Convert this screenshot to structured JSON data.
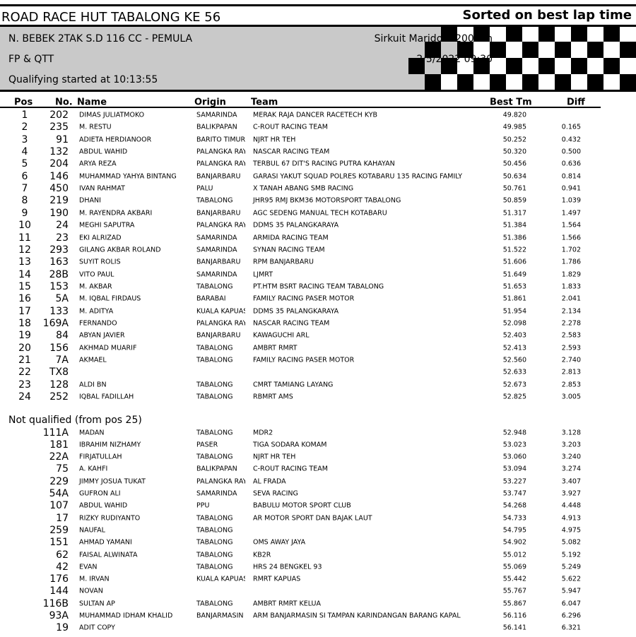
{
  "header": {
    "title": "ROAD RACE HUT TABALONG KE 56",
    "sort": "Sorted on best lap time",
    "class": "N. BEBEK 2TAK S.D 116 CC - PEMULA",
    "session": "FP & QTT",
    "started": "Qualifying started at 10:13:55",
    "circuit": "Sirkuit Marido 1.200 km",
    "date": "2/5/2022 09:30"
  },
  "table": {
    "columns": [
      "Pos",
      "No.",
      "Name",
      "Origin",
      "Team",
      "Best Tm",
      "Diff"
    ],
    "rows": [
      [
        1,
        "202",
        "DIMAS JULIATMOKO",
        "SAMARINDA",
        "MERAK RAJA DANCER RACETECH KYB",
        "49.820",
        null
      ],
      [
        2,
        "235",
        "M. RESTU",
        "BALIKPAPAN",
        "C-ROUT RACING TEAM",
        "49.985",
        "0.165"
      ],
      [
        3,
        "91",
        "ADIETA HERDIANOOR",
        "BARITO TIMUR",
        "NJRT HR TEH",
        "50.252",
        "0.432"
      ],
      [
        4,
        "132",
        "ABDUL WAHID",
        "PALANGKA RAYA",
        "NASCAR RACING TEAM",
        "50.320",
        "0.500"
      ],
      [
        5,
        "204",
        "ARYA REZA",
        "PALANGKA RAYA",
        "TERBUL 67 DIT'S RACING PUTRA KAHAYAN",
        "50.456",
        "0.636"
      ],
      [
        6,
        "146",
        "MUHAMMAD YAHYA BINTANG",
        "BANJARBARU",
        "GARASI YAKUT SQUAD POLRES KOTABARU 135 RACING FAMILY",
        "50.634",
        "0.814"
      ],
      [
        7,
        "450",
        "IVAN RAHMAT",
        "PALU",
        "X TANAH ABANG SMB RACING",
        "50.761",
        "0.941"
      ],
      [
        8,
        "219",
        "DHANI",
        "TABALONG",
        "JHR95 RMJ BKM36 MOTORSPORT TABALONG",
        "50.859",
        "1.039"
      ],
      [
        9,
        "190",
        "M. RAYENDRA AKBARI",
        "BANJARBARU",
        "AGC SEDENG MANUAL TECH KOTABARU",
        "51.317",
        "1.497"
      ],
      [
        10,
        "24",
        "MEGHI SAPUTRA",
        "PALANGKA RAYA",
        "DDMS 35 PALANGKARAYA",
        "51.384",
        "1.564"
      ],
      [
        11,
        "23",
        "EKI ALRIZAD",
        "SAMARINDA",
        "ARMIDA RACING TEAM",
        "51.386",
        "1.566"
      ],
      [
        12,
        "293",
        "GILANG AKBAR ROLAND",
        "SAMARINDA",
        "SYNAN RACING TEAM",
        "51.522",
        "1.702"
      ],
      [
        13,
        "163",
        "SUYIT ROLIS",
        "BANJARBARU",
        "RPM BANJARBARU",
        "51.606",
        "1.786"
      ],
      [
        14,
        "28B",
        "VITO PAUL",
        "SAMARINDA",
        "LJMRT",
        "51.649",
        "1.829"
      ],
      [
        15,
        "153",
        "M. AKBAR",
        "TABALONG",
        "PT.HTM BSRT RACING TEAM TABALONG",
        "51.653",
        "1.833"
      ],
      [
        16,
        "5A",
        "M. IQBAL FIRDAUS",
        "BARABAI",
        "FAMILY RACING PASER MOTOR",
        "51.861",
        "2.041"
      ],
      [
        17,
        "133",
        "M. ADITYA",
        "KUALA KAPUAS",
        "DDMS 35 PALANGKARAYA",
        "51.954",
        "2.134"
      ],
      [
        18,
        "169A",
        "FERNANDO",
        "PALANGKA RAYA",
        "NASCAR RACING TEAM",
        "52.098",
        "2.278"
      ],
      [
        19,
        "84",
        "ABYAN JAVIER",
        "BANJARBARU",
        "KAWAGUCHI ARL",
        "52.403",
        "2.583"
      ],
      [
        20,
        "156",
        "AKHMAD MUARIF",
        "TABALONG",
        "AMBRT RMRT",
        "52.413",
        "2.593"
      ],
      [
        21,
        "7A",
        "AKMAEL",
        "TABALONG",
        "FAMILY RACING PASER MOTOR",
        "52.560",
        "2.740"
      ],
      [
        22,
        "TX8",
        null,
        null,
        null,
        "52.633",
        "2.813"
      ],
      [
        23,
        "128",
        "ALDI BN",
        "TABALONG",
        "CMRT TAMIANG LAYANG",
        "52.673",
        "2.853"
      ],
      [
        24,
        "252",
        "IQBAL FADILLAH",
        "TABALONG",
        "RBMRT AMS",
        "52.825",
        "3.005"
      ]
    ],
    "not_qualified_title": "Not qualified (from pos 25)",
    "not_qualified": [
      [
        "111A",
        "MADAN",
        "TABALONG",
        "MDR2",
        "52.948",
        "3.128"
      ],
      [
        "181",
        "IBRAHIM NIZHAMY",
        "PASER",
        "TIGA SODARA KOMAM",
        "53.023",
        "3.203"
      ],
      [
        "22A",
        "FIRJATULLAH",
        "TABALONG",
        "NJRT HR TEH",
        "53.060",
        "3.240"
      ],
      [
        "75",
        "A. KAHFI",
        "BALIKPAPAN",
        "C-ROUT RACING TEAM",
        "53.094",
        "3.274"
      ],
      [
        "229",
        "JIMMY JOSUA TUKAT",
        "PALANGKA RAYA",
        "AL FRADA",
        "53.227",
        "3.407"
      ],
      [
        "54A",
        "GUFRON ALI",
        "SAMARINDA",
        "SEVA RACING",
        "53.747",
        "3.927"
      ],
      [
        "107",
        "ABDUL WAHID",
        "PPU",
        "BABULU MOTOR SPORT CLUB",
        "54.268",
        "4.448"
      ],
      [
        "17",
        "RIZKY RUDIYANTO",
        "TABALONG",
        "AR MOTOR SPORT DAN BAJAK LAUT",
        "54.733",
        "4.913"
      ],
      [
        "259",
        "NAUFAL",
        "TABALONG",
        null,
        "54.795",
        "4.975"
      ],
      [
        "151",
        "AHMAD YAMANI",
        "TABALONG",
        "OMS AWAY JAYA",
        "54.902",
        "5.082"
      ],
      [
        "62",
        "FAISAL ALWINATA",
        "TABALONG",
        "KB2R",
        "55.012",
        "5.192"
      ],
      [
        "42",
        "EVAN",
        "TABALONG",
        "HRS 24 BENGKEL 93",
        "55.069",
        "5.249"
      ],
      [
        "176",
        "M. IRVAN",
        "KUALA KAPUAS",
        "RMRT KAPUAS",
        "55.442",
        "5.622"
      ],
      [
        "144",
        "NOVAN",
        null,
        null,
        "55.767",
        "5.947"
      ],
      [
        "116B",
        "SULTAN AP",
        "TABALONG",
        "AMBRT RMRT KELUA",
        "55.867",
        "6.047"
      ],
      [
        "93A",
        "MUHAMMAD IDHAM KHALID",
        "BANJARMASIN",
        "ARM BANJARMASIN SI TAMPAN KARINDANGAN BARANG KAPAL",
        "56.116",
        "6.296"
      ],
      [
        "19",
        "ADIT COPY",
        null,
        null,
        "56.141",
        "6.321"
      ]
    ]
  }
}
